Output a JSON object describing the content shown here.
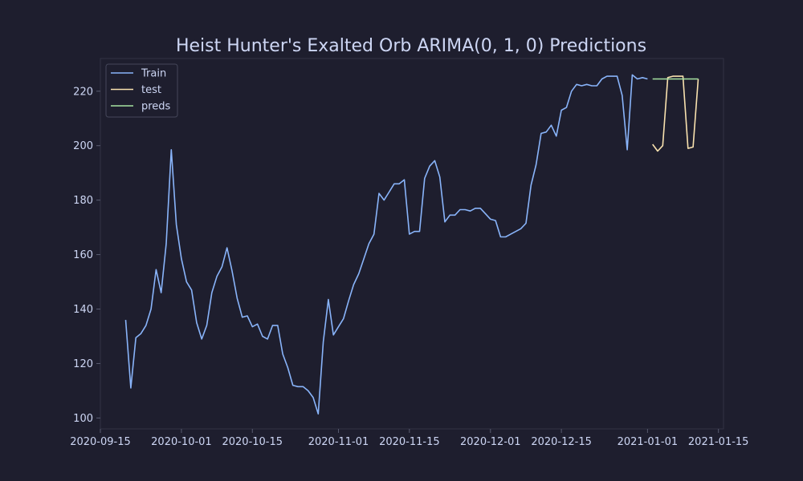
{
  "chart_data": {
    "type": "line",
    "title": "Heist Hunter's Exalted Orb ARIMA(0, 1, 0) Predictions",
    "xlabel": "",
    "ylabel": "",
    "x_ticks": [
      "2020-09-15",
      "2020-10-01",
      "2020-10-15",
      "2020-11-01",
      "2020-11-15",
      "2020-12-01",
      "2020-12-15",
      "2021-01-01",
      "2021-01-15"
    ],
    "y_ticks": [
      100,
      120,
      140,
      160,
      180,
      200,
      220
    ],
    "xlim": [
      "2020-09-15",
      "2021-01-16"
    ],
    "ylim": [
      96,
      232
    ],
    "grid": false,
    "legend_position": "top-left",
    "series": [
      {
        "name": "Train",
        "color": "#89b4fa",
        "x": [
          "2020-09-20",
          "2020-09-21",
          "2020-09-22",
          "2020-09-23",
          "2020-09-24",
          "2020-09-25",
          "2020-09-26",
          "2020-09-27",
          "2020-09-28",
          "2020-09-29",
          "2020-09-30",
          "2020-10-01",
          "2020-10-02",
          "2020-10-03",
          "2020-10-04",
          "2020-10-05",
          "2020-10-06",
          "2020-10-07",
          "2020-10-08",
          "2020-10-09",
          "2020-10-10",
          "2020-10-11",
          "2020-10-12",
          "2020-10-13",
          "2020-10-14",
          "2020-10-15",
          "2020-10-16",
          "2020-10-17",
          "2020-10-18",
          "2020-10-19",
          "2020-10-20",
          "2020-10-21",
          "2020-10-22",
          "2020-10-23",
          "2020-10-24",
          "2020-10-25",
          "2020-10-26",
          "2020-10-27",
          "2020-10-28",
          "2020-10-29",
          "2020-10-30",
          "2020-10-31",
          "2020-11-01",
          "2020-11-02",
          "2020-11-03",
          "2020-11-04",
          "2020-11-05",
          "2020-11-06",
          "2020-11-07",
          "2020-11-08",
          "2020-11-09",
          "2020-11-10",
          "2020-11-11",
          "2020-11-12",
          "2020-11-13",
          "2020-11-14",
          "2020-11-15",
          "2020-11-16",
          "2020-11-17",
          "2020-11-18",
          "2020-11-19",
          "2020-11-20",
          "2020-11-21",
          "2020-11-22",
          "2020-11-23",
          "2020-11-24",
          "2020-11-25",
          "2020-11-26",
          "2020-11-27",
          "2020-11-28",
          "2020-11-29",
          "2020-11-30",
          "2020-12-01",
          "2020-12-02",
          "2020-12-03",
          "2020-12-04",
          "2020-12-05",
          "2020-12-06",
          "2020-12-07",
          "2020-12-08",
          "2020-12-09",
          "2020-12-10",
          "2020-12-11",
          "2020-12-12",
          "2020-12-13",
          "2020-12-14",
          "2020-12-15",
          "2020-12-16",
          "2020-12-17",
          "2020-12-18",
          "2020-12-19",
          "2020-12-20",
          "2020-12-21",
          "2020-12-22",
          "2020-12-23",
          "2020-12-24",
          "2020-12-25",
          "2020-12-26",
          "2020-12-27",
          "2020-12-28",
          "2020-12-29",
          "2020-12-30",
          "2020-12-31",
          "2021-01-01"
        ],
        "values": [
          136,
          111,
          129.5,
          131,
          134,
          140,
          154.5,
          146,
          164,
          198.5,
          171,
          158.5,
          150,
          147,
          135,
          129,
          134,
          146,
          152,
          155.5,
          162.5,
          154,
          144,
          137,
          137.5,
          133.5,
          134.5,
          130,
          129,
          134,
          134,
          123.5,
          118.5,
          112,
          111.5,
          111.5,
          110,
          107.5,
          101.5,
          128,
          143.5,
          130.5,
          133.5,
          136.5,
          143,
          149,
          153,
          158.5,
          164,
          167.5,
          182.5,
          180,
          183,
          186,
          186,
          187.5,
          167.5,
          168.5,
          168.5,
          188,
          192.5,
          194.5,
          188.5,
          172,
          174.5,
          174.5,
          176.5,
          176.5,
          176,
          177,
          177,
          175,
          173,
          172.5,
          166.5,
          166.5,
          167.5,
          168.5,
          169.5,
          171.5,
          185.5,
          193,
          204.5,
          205,
          207.5,
          203.5,
          213,
          214,
          220,
          222.5,
          222,
          222.5,
          222,
          222,
          224.5,
          225.5,
          225.5,
          225.5,
          218.5,
          198.5,
          226,
          224.5,
          225,
          224.5
        ]
      },
      {
        "name": "test",
        "color": "#f9e2af",
        "x": [
          "2021-01-02",
          "2021-01-03",
          "2021-01-04",
          "2021-01-05",
          "2021-01-06",
          "2021-01-07",
          "2021-01-08",
          "2021-01-09",
          "2021-01-10",
          "2021-01-11"
        ],
        "values": [
          200.5,
          198,
          200,
          225,
          225.5,
          225.5,
          225.5,
          199,
          199.5,
          224.5
        ]
      },
      {
        "name": "preds",
        "color": "#a6e3a1",
        "x": [
          "2021-01-02",
          "2021-01-03",
          "2021-01-04",
          "2021-01-05",
          "2021-01-06",
          "2021-01-07",
          "2021-01-08",
          "2021-01-09",
          "2021-01-10",
          "2021-01-11"
        ],
        "values": [
          224.5,
          224.5,
          224.5,
          224.5,
          224.5,
          224.5,
          224.5,
          224.5,
          224.5,
          224.5
        ]
      }
    ]
  }
}
